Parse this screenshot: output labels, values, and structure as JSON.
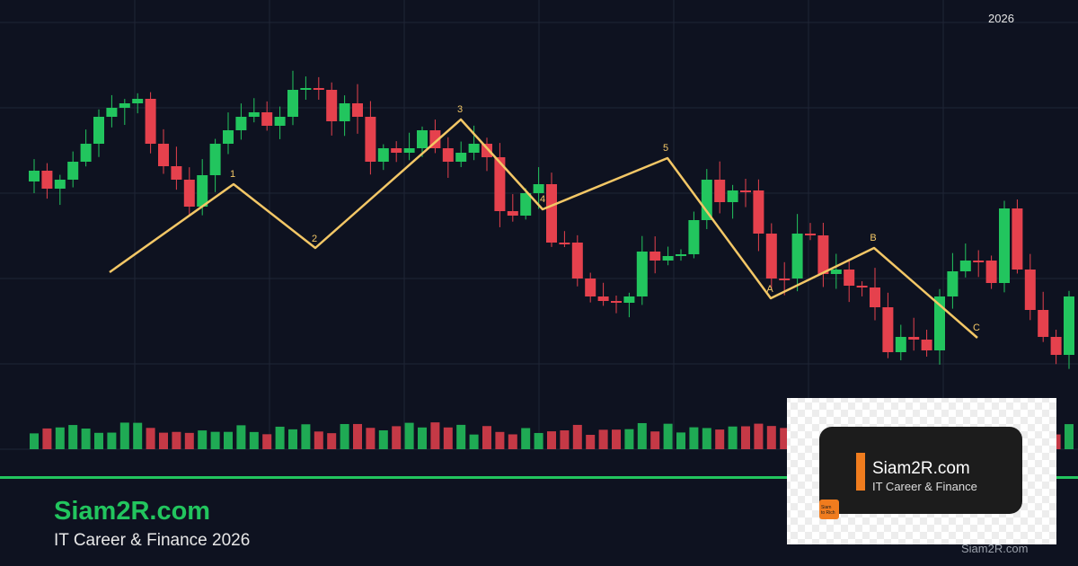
{
  "header": {
    "year": "2026"
  },
  "waves": [
    "1",
    "2",
    "3",
    "4",
    "5",
    "A",
    "B",
    "C"
  ],
  "brand": {
    "title": "Siam2R.com",
    "subtitle": "IT Career & Finance 2026"
  },
  "logo": {
    "title": "Siam2R.com",
    "tagline": "IT Career & Finance",
    "badge": [
      "Siam",
      "to Rich"
    ]
  },
  "footer": {
    "watermark": "Siam2R.com"
  }
}
